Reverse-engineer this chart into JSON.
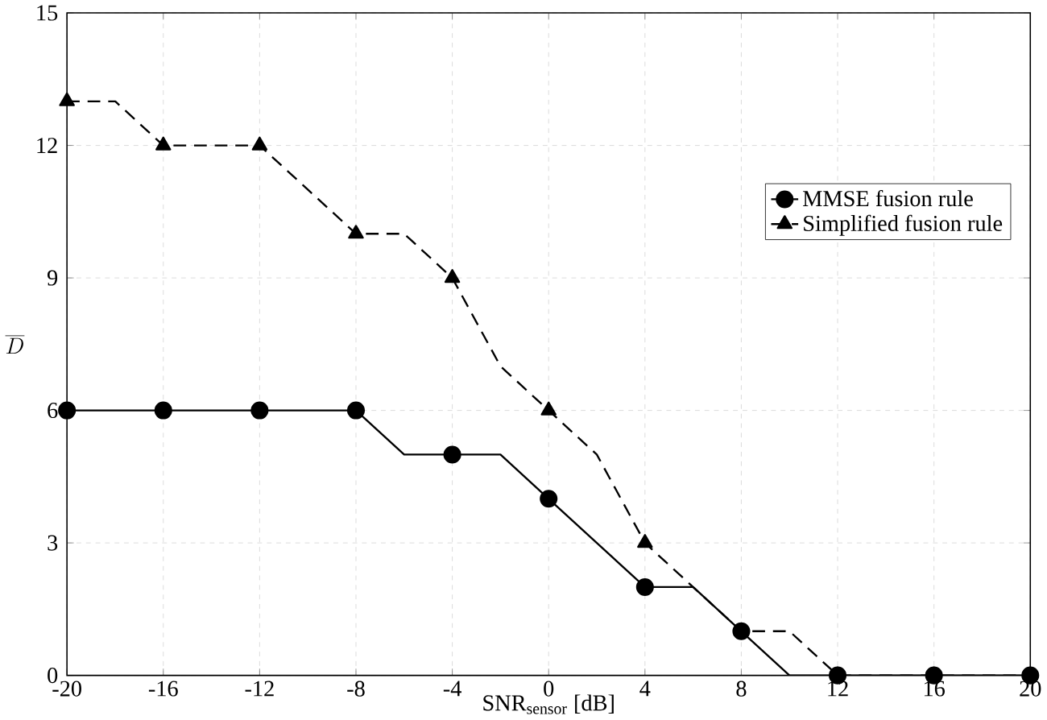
{
  "chart_data": {
    "type": "line",
    "xlabel": "SNR$_{sensor}$ [dB]",
    "ylabel": "\\overline{D}",
    "x": [
      -20,
      -18,
      -16,
      -14,
      -12,
      -10,
      -8,
      -6,
      -4,
      -2,
      0,
      2,
      4,
      6,
      8,
      10,
      12,
      14,
      16,
      18,
      20
    ],
    "series": [
      {
        "name": "MMSE fusion rule",
        "color": "#000000",
        "marker": "circle",
        "line_style": "solid",
        "values": [
          6,
          6,
          6,
          6,
          6,
          6,
          6,
          5,
          5,
          5,
          4,
          3,
          2,
          2,
          1,
          0,
          0,
          0,
          0,
          0,
          0
        ]
      },
      {
        "name": "Simplified fusion rule",
        "color": "#000000",
        "marker": "triangle",
        "line_style": "dashed",
        "values": [
          13,
          13,
          12,
          12,
          12,
          11,
          10,
          10,
          9,
          7,
          6,
          5,
          3,
          2,
          1,
          1,
          0,
          0,
          0,
          0,
          0
        ]
      }
    ],
    "xlim": [
      -20,
      20
    ],
    "ylim": [
      0,
      15
    ],
    "xticks": [
      -20,
      -16,
      -12,
      -8,
      -4,
      0,
      4,
      8,
      12,
      16,
      20
    ],
    "yticks": [
      0,
      3,
      6,
      9,
      12,
      15
    ],
    "grid": true,
    "legend": "right"
  }
}
